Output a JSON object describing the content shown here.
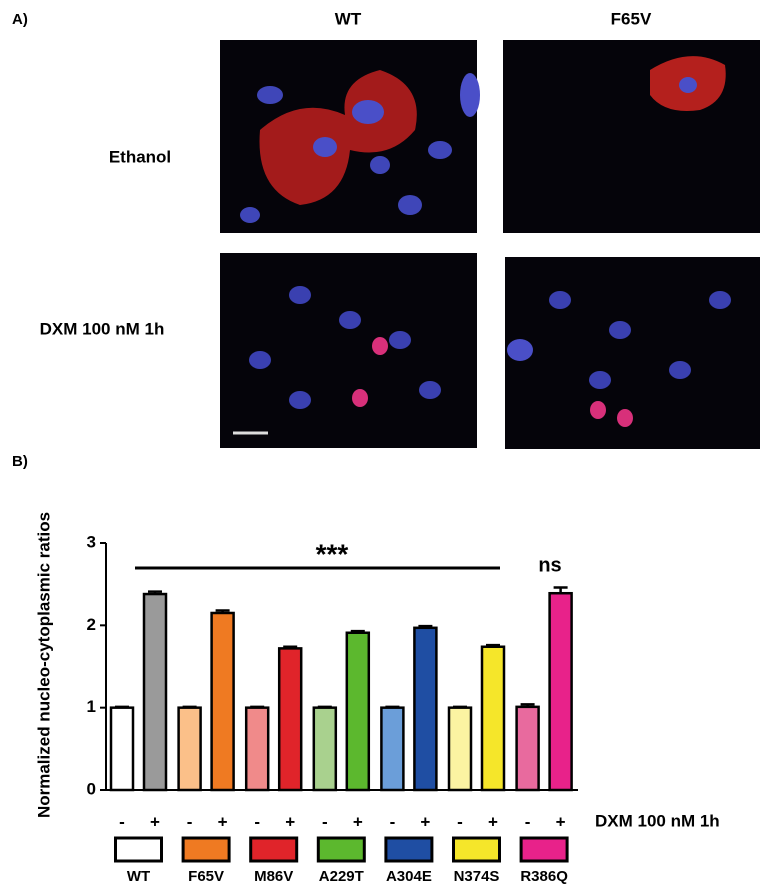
{
  "panel_a": {
    "label": "A)",
    "columns": [
      "WT",
      "F65V"
    ],
    "rows": [
      "Ethanol",
      "DXM 100 nM 1h"
    ]
  },
  "chart_data": {
    "type": "bar",
    "panel_label": "B)",
    "y_label": "Normalized nucleo-cytoplasmic ratios",
    "categories": [
      "-",
      "+",
      "-",
      "+",
      "-",
      "+",
      "-",
      "+",
      "-",
      "+",
      "-",
      "+",
      "-",
      "+"
    ],
    "values": [
      1.0,
      2.38,
      1.0,
      2.15,
      1.0,
      1.72,
      1.0,
      1.91,
      1.0,
      1.97,
      1.0,
      1.74,
      1.01,
      2.39
    ],
    "errors": [
      0.01,
      0.03,
      0.01,
      0.03,
      0.01,
      0.02,
      0.01,
      0.02,
      0.01,
      0.02,
      0.01,
      0.02,
      0.03,
      0.07
    ],
    "colors": [
      "#ffffff",
      "#9a9a9a",
      "#fbc089",
      "#ef7a22",
      "#f08a8a",
      "#e0242a",
      "#a9d18e",
      "#5cb82e",
      "#6b9ed9",
      "#1f4ea3",
      "#fbf3a2",
      "#f5e62a",
      "#e86a9e",
      "#e8228a"
    ],
    "groups": [
      {
        "name": "WT",
        "color": "#ffffff"
      },
      {
        "name": "F65V",
        "color": "#ef7a22"
      },
      {
        "name": "M86V",
        "color": "#e0242a"
      },
      {
        "name": "A229T",
        "color": "#5cb82e"
      },
      {
        "name": "A304E",
        "color": "#1f4ea3"
      },
      {
        "name": "N374S",
        "color": "#f5e62a"
      },
      {
        "name": "R386Q",
        "color": "#e8228a"
      }
    ],
    "treatment_label": "DXM 100 nM 1h",
    "annotations": [
      "***",
      "ns"
    ],
    "ylim": [
      0,
      3
    ],
    "yticks": [
      0,
      1,
      2,
      3
    ]
  }
}
